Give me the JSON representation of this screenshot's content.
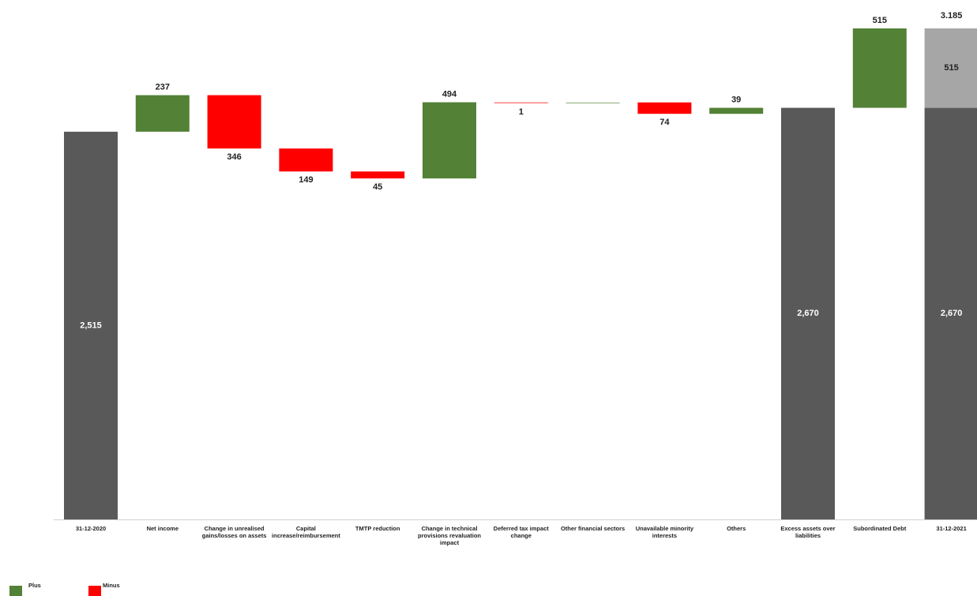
{
  "chart_data": {
    "type": "waterfall",
    "categories": [
      "31-12-2020",
      "Net income",
      "Change in unrealised gains/losses on assets",
      "Capital increase/reimbursement",
      "TMTP reduction",
      "Change in technical provisions revaluation impact",
      "Deferred tax impact change",
      "Other financial sectors",
      "Unavailable minority interests",
      "Others",
      "Excess assets over liabilities",
      "Subordinated Debt",
      "31-12-2021"
    ],
    "measures": [
      "total",
      "relative",
      "relative",
      "relative",
      "relative",
      "relative",
      "relative",
      "relative",
      "relative",
      "relative",
      "total",
      "relative",
      "total"
    ],
    "values": [
      2515,
      237,
      -346,
      -149,
      -45,
      494,
      -1,
      0,
      -74,
      39,
      2670,
      515,
      3185
    ],
    "value_labels": [
      "2,515",
      "237",
      "346",
      "149",
      "45",
      "494",
      "1",
      null,
      "74",
      "39",
      "2,670",
      "515",
      "3.185"
    ],
    "final_parts": {
      "values": [
        2670,
        515
      ],
      "value_labels": [
        "2,670",
        "515"
      ],
      "colors": [
        "#595959",
        "#a6a6a6"
      ]
    },
    "colors": {
      "total": "#595959",
      "plus": "#538135",
      "minus": "#ff0000"
    },
    "legend": {
      "position": "bottom-left",
      "entries": [
        "Plus",
        "Minus"
      ]
    }
  }
}
